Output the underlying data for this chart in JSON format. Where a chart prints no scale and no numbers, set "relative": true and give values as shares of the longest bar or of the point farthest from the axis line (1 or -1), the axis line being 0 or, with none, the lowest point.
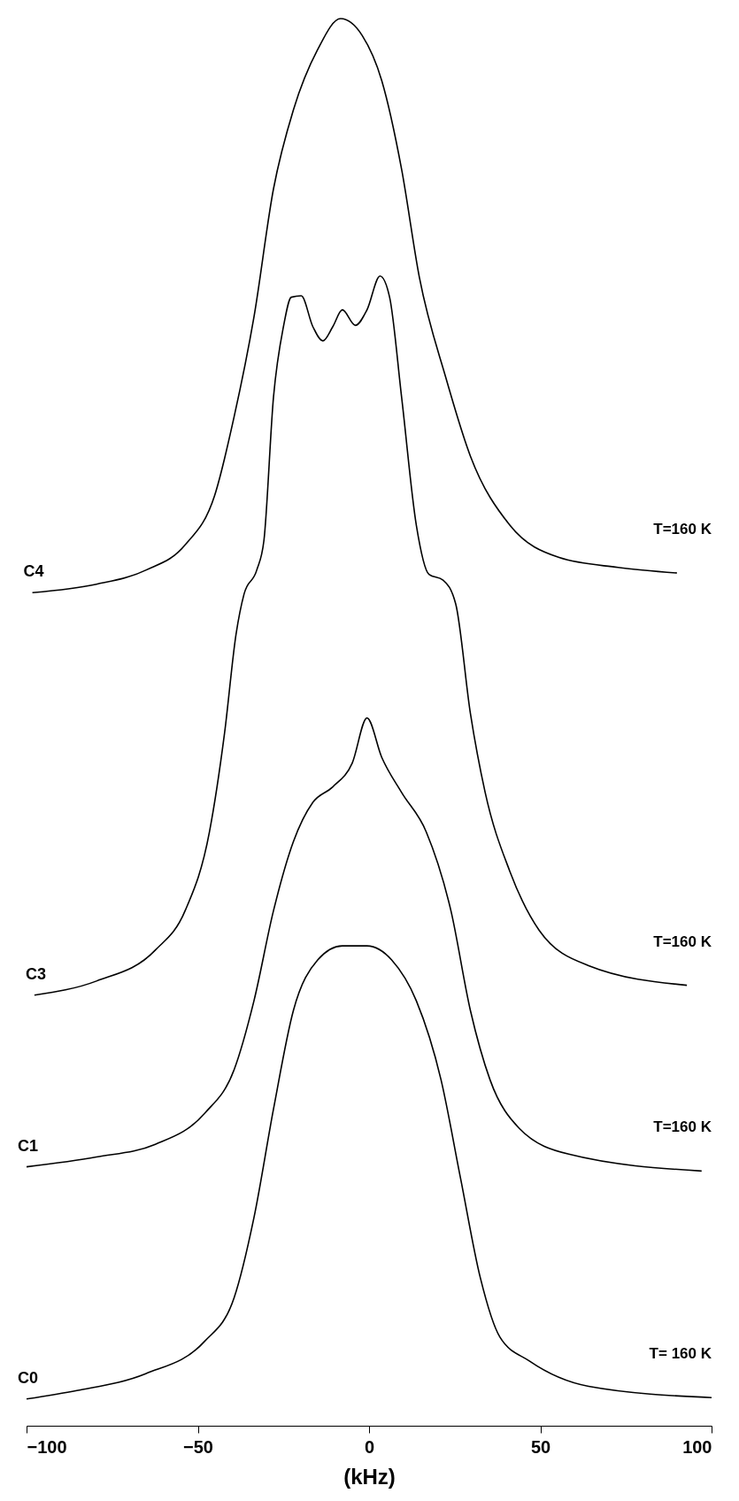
{
  "chart_data": {
    "type": "line",
    "relative": true,
    "xlabel": "(kHz)",
    "xlim": [
      -100,
      100
    ],
    "xticks": [
      -100,
      -50,
      0,
      50,
      100
    ],
    "tick_labels": "x",
    "grid": false,
    "marker": "none",
    "line_style": "solid",
    "series": [
      {
        "name": "C4",
        "color": "#000000",
        "x": [
          -98.3,
          -79.6,
          -65.2,
          -53.7,
          -45.1,
          -39.4,
          -33.6,
          -27.9,
          -22.1,
          -15,
          -8.3,
          -2,
          3.7,
          9.5,
          14.7,
          22.4,
          29.6,
          41.1,
          55.5,
          72.7,
          89.9
        ],
        "values": [
          0.592,
          0.598,
          0.608,
          0.626,
          0.661,
          0.717,
          0.788,
          0.879,
          0.935,
          0.978,
          1.0,
          0.988,
          0.956,
          0.893,
          0.816,
          0.745,
          0.689,
          0.64,
          0.617,
          0.61,
          0.606
        ]
      },
      {
        "name": "C3",
        "color": "#000000",
        "x": [
          -97.7,
          -79.6,
          -62.4,
          -53.7,
          -46.6,
          -42.2,
          -38.8,
          -36.5,
          -32.8,
          -30.7,
          -27.9,
          -25,
          -22.7,
          -19.8,
          -16.4,
          -13.5,
          -10.6,
          -7.8,
          -4,
          -0.6,
          3.2,
          6,
          9.5,
          13.8,
          17.5,
          21.6,
          25.3,
          29.6,
          33.9,
          41.1,
          49.7,
          64.1,
          92.8
        ],
        "values": [
          0.306,
          0.316,
          0.338,
          0.366,
          0.422,
          0.492,
          0.563,
          0.591,
          0.608,
          0.629,
          0.731,
          0.781,
          0.802,
          0.803,
          0.781,
          0.771,
          0.781,
          0.793,
          0.782,
          0.793,
          0.817,
          0.802,
          0.731,
          0.64,
          0.605,
          0.601,
          0.584,
          0.506,
          0.45,
          0.394,
          0.352,
          0.327,
          0.313
        ]
      },
      {
        "name": "C1",
        "color": "#000000",
        "x": [
          -100,
          -79.6,
          -62.4,
          -48,
          -39.4,
          -33.6,
          -27.9,
          -22.1,
          -16.4,
          -10.6,
          -4.9,
          -0.6,
          3.7,
          9.5,
          16.7,
          23.9,
          29.6,
          35.3,
          44,
          58.3,
          97.1
        ],
        "values": [
          0.184,
          0.191,
          0.2,
          0.222,
          0.253,
          0.302,
          0.366,
          0.415,
          0.443,
          0.454,
          0.471,
          0.503,
          0.475,
          0.45,
          0.422,
          0.366,
          0.295,
          0.246,
          0.211,
          0.193,
          0.181
        ]
      },
      {
        "name": "C0",
        "color": "#000000",
        "x": [
          -100,
          -85.3,
          -65.2,
          -48,
          -39.4,
          -33.6,
          -27.9,
          -22.1,
          -15,
          -7.8,
          -0.6,
          6.6,
          13.8,
          21,
          26.7,
          32.5,
          38.2,
          46.8,
          64.1,
          100
        ],
        "values": [
          0.019,
          0.025,
          0.037,
          0.06,
          0.091,
          0.148,
          0.225,
          0.295,
          0.331,
          0.341,
          0.341,
          0.331,
          0.302,
          0.246,
          0.176,
          0.105,
          0.063,
          0.046,
          0.028,
          0.02
        ]
      }
    ],
    "annotations": [
      "T=160 K",
      "T=160 K",
      "T=160 K",
      "T= 160 K"
    ]
  }
}
